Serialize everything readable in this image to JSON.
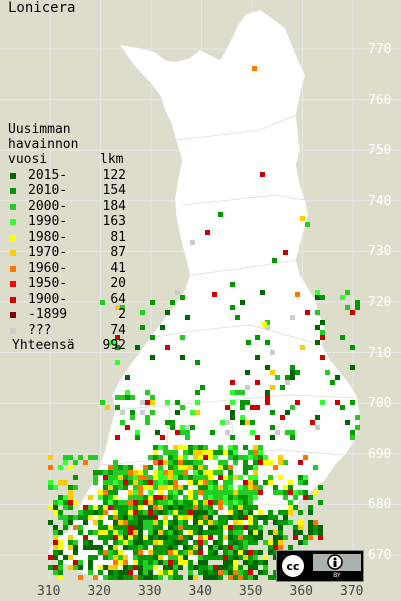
{
  "map": {
    "title": "Lonicera",
    "legend": {
      "heading_lines": [
        "Uusimman",
        "havainnon"
      ],
      "col_year": "vuosi",
      "col_count": "lkm",
      "items": [
        {
          "label": "2015-",
          "count": "122",
          "color": "#006600"
        },
        {
          "label": "2010-",
          "count": "154",
          "color": "#009900"
        },
        {
          "label": "2000-",
          "count": "184",
          "color": "#22cc22"
        },
        {
          "label": "1990-",
          "count": "163",
          "color": "#33ff33"
        },
        {
          "label": "1980-",
          "count": "81",
          "color": "#ffff00"
        },
        {
          "label": "1970-",
          "count": "87",
          "color": "#ffcc00"
        },
        {
          "label": "1960-",
          "count": "41",
          "color": "#ff7700"
        },
        {
          "label": "1950-",
          "count": "20",
          "color": "#ff0000"
        },
        {
          "label": "1900-",
          "count": "64",
          "color": "#cc0000"
        },
        {
          "label": "-1899",
          "count": "2",
          "color": "#880000"
        },
        {
          "label": " ???",
          "count": "74",
          "color": "#cccccc"
        }
      ],
      "total_label": "Yhteensä",
      "total_count": "992"
    },
    "y_ticks": [
      "770",
      "760",
      "750",
      "740",
      "730",
      "720",
      "710",
      "700",
      "690",
      "680",
      "670"
    ],
    "x_ticks": [
      "310",
      "320",
      "330",
      "340",
      "350",
      "360",
      "370"
    ],
    "license": "cc BY",
    "land_color": "#ffffff",
    "background_color": "#ddddcc"
  }
}
